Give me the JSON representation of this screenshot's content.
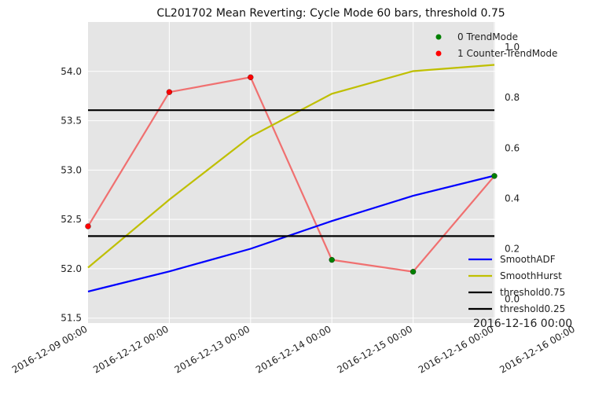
{
  "chart_data": {
    "type": "line",
    "title": "CL201702 Mean Reverting: Cycle Mode 60 bars, threshold 0.75",
    "x_tick_labels": [
      "2016-12-09 00:00",
      "2016-12-12 00:00",
      "2016-12-13 00:00",
      "2016-12-14 00:00",
      "2016-12-15 00:00",
      "2016-12-16 00:00",
      "2016-12-16 00:00"
    ],
    "x_positions": [
      0,
      1,
      2,
      3,
      4,
      5,
      6
    ],
    "xlim": [
      0,
      6
    ],
    "left_axis": {
      "ylim": [
        51.45,
        54.5
      ],
      "ticks": [
        51.5,
        52.0,
        52.5,
        53.0,
        53.5,
        54.0
      ],
      "tick_labels": [
        "51.5",
        "52.0",
        "52.5",
        "53.0",
        "53.5",
        "54.0"
      ]
    },
    "right_axis": {
      "ylim": [
        -0.095,
        1.1
      ],
      "ticks": [
        0.0,
        0.2,
        0.4,
        0.6,
        0.8,
        1.0
      ],
      "tick_labels": [
        "0.0",
        "0.2",
        "0.4",
        "0.6",
        "0.8",
        "1.0"
      ]
    },
    "price": {
      "x": [
        0,
        1,
        2,
        3,
        4,
        5
      ],
      "values": [
        52.43,
        53.79,
        53.94,
        52.09,
        51.97,
        52.94
      ],
      "color": "#f07070"
    },
    "regime_points": [
      {
        "x": 0,
        "mode": 1
      },
      {
        "x": 1,
        "mode": 1
      },
      {
        "x": 2,
        "mode": 1
      },
      {
        "x": 3,
        "mode": 0
      },
      {
        "x": 4,
        "mode": 0
      },
      {
        "x": 5,
        "mode": 0
      }
    ],
    "series": [
      {
        "name": "SmoothADF",
        "axis": "right",
        "color": "#0000ff",
        "x": [
          0,
          1,
          2,
          3,
          4,
          5
        ],
        "values": [
          0.03,
          0.11,
          0.2,
          0.31,
          0.41,
          0.49
        ]
      },
      {
        "name": "SmoothHurst",
        "axis": "right",
        "color": "#bfbf00",
        "x": [
          0,
          1,
          2,
          3,
          4,
          5
        ],
        "values": [
          0.125,
          0.395,
          0.645,
          0.815,
          0.905,
          0.93
        ]
      },
      {
        "name": "threshold0.75",
        "axis": "right",
        "color": "#000000",
        "x": [
          0,
          5
        ],
        "values": [
          0.75,
          0.75
        ]
      },
      {
        "name": "threshold0.25",
        "axis": "right",
        "color": "#000000",
        "x": [
          0,
          5
        ],
        "values": [
          0.25,
          0.25
        ]
      }
    ],
    "legend_top": [
      {
        "label": "0 TrendMode",
        "color": "#008000"
      },
      {
        "label": "1 Counter-TrendMode",
        "color": "#ff0000"
      }
    ],
    "legend_top_position": "top-right",
    "legend_bottom_position": "bottom-right",
    "annotation": "2016-12-16 00:00",
    "grid": true,
    "background": "#e5e5e5"
  }
}
